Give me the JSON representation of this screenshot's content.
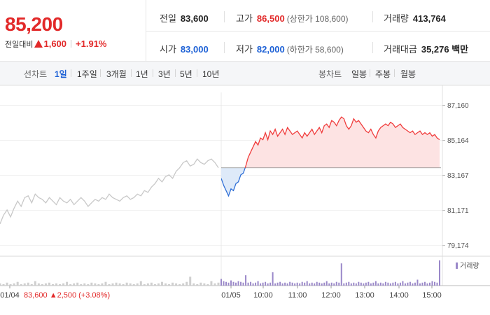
{
  "summary": {
    "price": "85,200",
    "change_label": "전일대비",
    "change_amount": "1,600",
    "change_rate": "+1.91%"
  },
  "stats": {
    "prev_close": {
      "label": "전일",
      "value": "83,600"
    },
    "high": {
      "label": "고가",
      "value": "86,500",
      "sub": "(상한가 108,600)"
    },
    "volume": {
      "label": "거래량",
      "value": "413,764"
    },
    "open": {
      "label": "시가",
      "value": "83,000"
    },
    "low": {
      "label": "저가",
      "value": "82,000",
      "sub": "(하한가 58,600)"
    },
    "trade_value": {
      "label": "거래대금",
      "value": "35,276 백만"
    }
  },
  "tabs": {
    "line_title": "선차트",
    "line_items": [
      "1일",
      "1주일",
      "3개월",
      "1년",
      "3년",
      "5년",
      "10년"
    ],
    "line_active": "1일",
    "candle_title": "봉차트",
    "candle_items": [
      "일봉",
      "주봉",
      "월봉"
    ]
  },
  "chart_data": {
    "type": "line",
    "y_ticks": [
      "87,160",
      "85,164",
      "83,167",
      "81,171",
      "79,174"
    ],
    "y_tick_values": [
      87160,
      85164,
      83167,
      81171,
      79174
    ],
    "ylim": [
      78800,
      87900
    ],
    "x_labels": [
      "01/04",
      "01/05",
      "10:00",
      "11:00",
      "12:00",
      "13:00",
      "14:00",
      "15:00"
    ],
    "prev_day": {
      "date": "01/04",
      "close": "83,600",
      "change": "2,500",
      "rate": "(+3.08%)",
      "color": "#c8c8c8",
      "values": [
        80400,
        80900,
        81200,
        80800,
        81300,
        81700,
        81400,
        81900,
        82000,
        81600,
        82100,
        81900,
        81800,
        81600,
        81900,
        81700,
        81500,
        81900,
        81700,
        81600,
        81800,
        81500,
        81700,
        81900,
        81700,
        81400,
        81600,
        81800,
        81700,
        81900,
        81800,
        82100,
        81900,
        81800,
        81700,
        81900,
        82000,
        81800,
        81900,
        82100,
        82000,
        82300,
        82200,
        82500,
        82700,
        83000,
        82800,
        83100,
        83200,
        83000,
        83400,
        83600,
        83900,
        84000,
        83700,
        83800,
        84100,
        83900,
        83800,
        84000,
        84100,
        83900,
        83600
      ]
    },
    "today": {
      "date": "01/05",
      "base": 83600,
      "up_color": "#f03c3c",
      "down_color": "#2f6fd6",
      "values": [
        83000,
        82600,
        82300,
        82000,
        82400,
        82300,
        82700,
        82800,
        83200,
        83300,
        83700,
        84200,
        84500,
        84800,
        85100,
        84900,
        85300,
        85200,
        85600,
        85200,
        85700,
        85500,
        85800,
        85400,
        85600,
        85800,
        85500,
        85900,
        85700,
        85500,
        85600,
        85700,
        85500,
        85300,
        85600,
        85400,
        85600,
        85800,
        85500,
        85700,
        85900,
        85600,
        86000,
        86100,
        85900,
        86300,
        86200,
        86000,
        86300,
        86500,
        86400,
        86000,
        85800,
        86000,
        86400,
        86200,
        86300,
        86100,
        85900,
        85700,
        85600,
        85800,
        85500,
        85300,
        85700,
        85900,
        86000,
        86100,
        86000,
        86200,
        86100,
        85900,
        86000,
        86100,
        85900,
        85800,
        85700,
        85600,
        85700,
        85500,
        85600,
        85700,
        85500,
        85600,
        85500,
        85600,
        85400,
        85500,
        85300,
        85200
      ]
    },
    "volume": {
      "legend": "거래량",
      "prev_color": "#cfcfcf",
      "today_color": "#9a88c9",
      "prev_values": [
        3,
        2,
        4,
        2,
        3,
        5,
        2,
        3,
        4,
        2,
        6,
        3,
        2,
        3,
        4,
        2,
        3,
        2,
        3,
        5,
        2,
        3,
        4,
        2,
        3,
        2,
        4,
        3,
        2,
        3,
        5,
        2,
        3,
        4,
        3,
        2,
        4,
        3,
        2,
        3,
        6,
        2,
        3,
        4,
        2,
        3,
        5,
        3,
        2,
        4,
        3,
        2,
        3,
        5,
        12,
        3,
        2,
        4,
        3,
        2,
        6,
        3,
        4
      ],
      "today_values": [
        9,
        6,
        5,
        4,
        7,
        5,
        4,
        6,
        5,
        4,
        14,
        4,
        5,
        3,
        4,
        6,
        3,
        4,
        5,
        3,
        4,
        18,
        3,
        4,
        5,
        3,
        4,
        3,
        5,
        4,
        3,
        4,
        3,
        5,
        4,
        6,
        3,
        4,
        3,
        5,
        4,
        3,
        4,
        6,
        3,
        4,
        3,
        5,
        4,
        30,
        3,
        4,
        5,
        3,
        4,
        3,
        5,
        4,
        3,
        4,
        5,
        3,
        4,
        6,
        3,
        4,
        3,
        5,
        4,
        3,
        4,
        5,
        3,
        4,
        6,
        3,
        4,
        5,
        3,
        4,
        8,
        3,
        4,
        5,
        3,
        4,
        6,
        5,
        4,
        34
      ]
    }
  }
}
